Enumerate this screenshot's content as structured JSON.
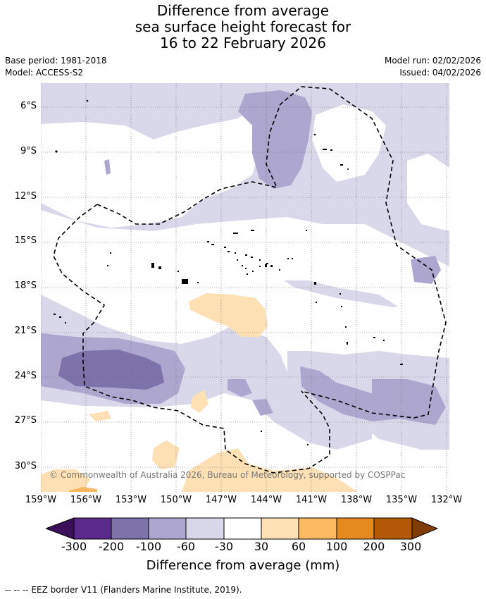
{
  "title": {
    "line1": "Difference from average",
    "line2": "sea surface height forecast for",
    "line3": "16 to 22 February 2026"
  },
  "meta": {
    "base_period": "Base period: 1981-2018",
    "model": "Model: ACCESS-S2",
    "model_run": "Model run: 02/02/2026",
    "issued": "Issued: 04/02/2026"
  },
  "map": {
    "copyright": "© Commonwealth of Australia 2026, Bureau of Meteorology, supported by COSPPac",
    "lat_labels": [
      "6°S",
      "9°S",
      "12°S",
      "15°S",
      "18°S",
      "21°S",
      "24°S",
      "27°S",
      "30°S"
    ],
    "lon_labels": [
      "159°W",
      "156°W",
      "153°W",
      "150°W",
      "147°W",
      "144°W",
      "141°W",
      "138°W",
      "135°W",
      "132°W"
    ]
  },
  "colorbar": {
    "title": "Difference from average (mm)",
    "labels": [
      "-300",
      "-200",
      "-100",
      "-60",
      "-30",
      "30",
      "60",
      "100",
      "200",
      "300"
    ],
    "colors": [
      "#3b0f5a",
      "#5a2a8a",
      "#7e72ab",
      "#ada7d0",
      "#d8d8ea",
      "#ffffff",
      "#fde0b4",
      "#fbb962",
      "#e58a1f",
      "#b35806",
      "#7f3b08"
    ]
  },
  "legend": {
    "eez": "--  --  -- EEZ border V11 (Flanders Marine Institute, 2019)."
  }
}
